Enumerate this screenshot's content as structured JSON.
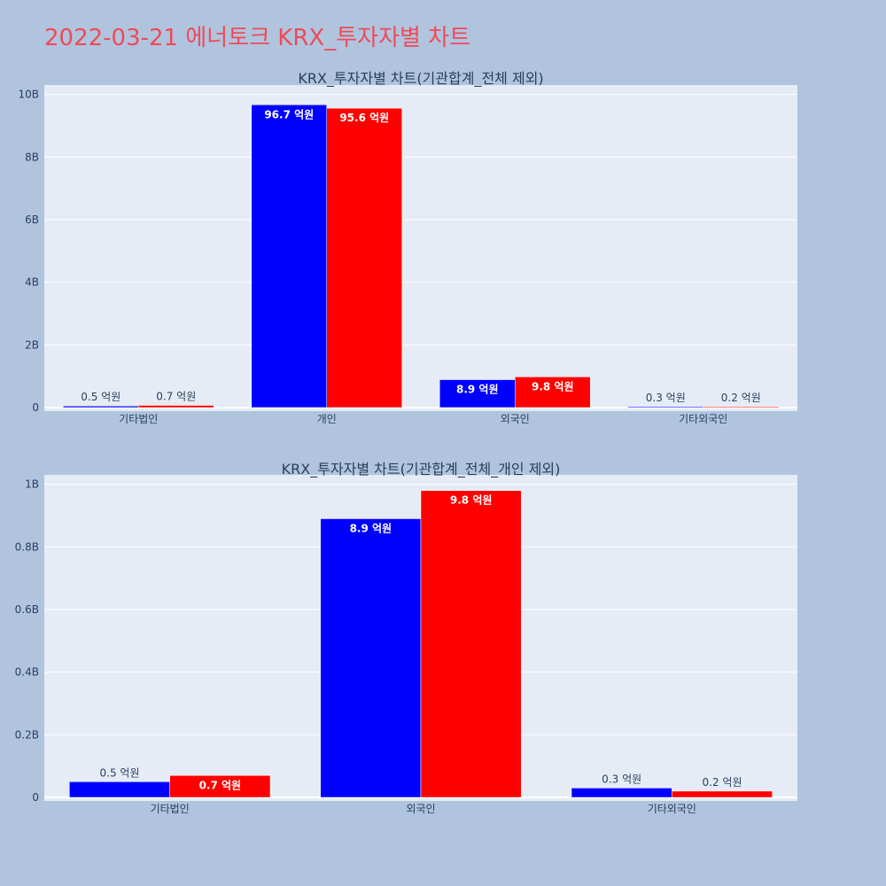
{
  "page": {
    "title": "2022-03-21 에너토크 KRX_투자자별 차트"
  },
  "colors": {
    "background": "#b0c4de",
    "plot_background": "#e5ecf6",
    "title": "#ef4a5a",
    "series_1": "#0000ff",
    "series_2": "#ff0000"
  },
  "chart_data": [
    {
      "type": "bar",
      "title": "KRX_투자자별 차트(기관합계_전체 제외)",
      "categories": [
        "기타법인",
        "개인",
        "외국인",
        "기타외국인"
      ],
      "y_tick_labels": [
        "0",
        "2B",
        "4B",
        "6B",
        "8B",
        "10B"
      ],
      "y_tick_values": [
        0,
        2000000000,
        4000000000,
        6000000000,
        8000000000,
        10000000000
      ],
      "ylim": [
        0,
        10300000000
      ],
      "grid": true,
      "series": [
        {
          "color": "#0000ff",
          "values": [
            50000000,
            9670000000,
            890000000,
            30000000
          ],
          "labels": [
            "0.5 억원",
            "96.7 억원",
            "8.9 억원",
            "0.3 억원"
          ]
        },
        {
          "color": "#ff0000",
          "values": [
            70000000,
            9560000000,
            980000000,
            20000000
          ],
          "labels": [
            "0.7 억원",
            "95.6 억원",
            "9.8 억원",
            "0.2 억원"
          ]
        }
      ]
    },
    {
      "type": "bar",
      "title": "KRX_투자자별 차트(기관합계_전체_개인 제외)",
      "categories": [
        "기타법인",
        "외국인",
        "기타외국인"
      ],
      "y_tick_labels": [
        "0",
        "0.2B",
        "0.4B",
        "0.6B",
        "0.8B",
        "1B"
      ],
      "y_tick_values": [
        0,
        200000000,
        400000000,
        600000000,
        800000000,
        1000000000
      ],
      "ylim": [
        0,
        1030000000
      ],
      "grid": true,
      "series": [
        {
          "color": "#0000ff",
          "values": [
            50000000,
            890000000,
            30000000
          ],
          "labels": [
            "0.5 억원",
            "8.9 억원",
            "0.3 억원"
          ]
        },
        {
          "color": "#ff0000",
          "values": [
            70000000,
            980000000,
            20000000
          ],
          "labels": [
            "0.7 억원",
            "9.8 억원",
            "0.2 억원"
          ]
        }
      ]
    }
  ]
}
